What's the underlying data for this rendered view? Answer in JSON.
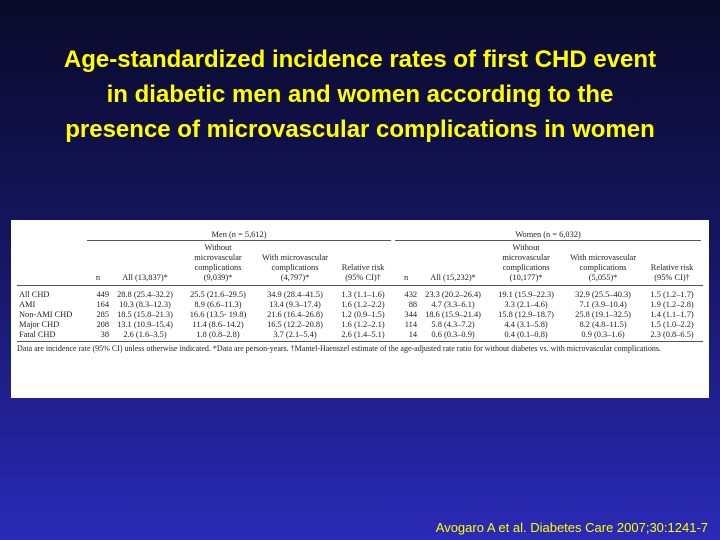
{
  "title": {
    "line1": "Age-standardized incidence rates of first CHD event",
    "line2": "in diabetic men and women according to the",
    "line3": "presence of microvascular complications in women"
  },
  "table": {
    "men_group": "Men (n = 5,612)",
    "women_group": "Women (n = 6,032)",
    "headers": {
      "n": "n",
      "all_men": "All (13,837)*",
      "without_men": "Without microvascular complications (9,039)*",
      "with_men": "With microvascular complications (4,797)*",
      "rr_men": "Relative risk (95% CI)†",
      "all_women": "All (15,232)*",
      "without_women": "Without microvascular complications (10,177)*",
      "with_women": "With microvascular complications (5,055)*",
      "rr_women": "Relative risk (95% CI)†"
    },
    "rows": [
      {
        "label": "All CHD",
        "n_men": "449",
        "all_men": "28.8 (25.4–32.2)",
        "without_men": "25.5 (21.6–29.5)",
        "with_men": "34.9 (28.4–41.5)",
        "rr_men": "1.3 (1.1–1.6)",
        "n_women": "432",
        "all_women": "23.3 (20.2–26.4)",
        "without_women": "19.1 (15.9–22.3)",
        "with_women": "32.9 (25.5–40.3)",
        "rr_women": "1.5 (1.2–1.7)"
      },
      {
        "label": "AMI",
        "n_men": "164",
        "all_men": "10.3 (8.3–12.3)",
        "without_men": "8.9 (6.6–11.3)",
        "with_men": "13.4 (9.3–17.4)",
        "rr_men": "1.6 (1.2–2.2)",
        "n_women": "88",
        "all_women": "4.7 (3.3–6.1)",
        "without_women": "3.3 (2.1–4.6)",
        "with_women": "7.1 (3.9–10.4)",
        "rr_women": "1.9 (1.2–2.8)"
      },
      {
        "label": "Non-AMI CHD",
        "n_men": "285",
        "all_men": "18.5 (15.8–21.3)",
        "without_men": "16.6 (13.5- 19.8)",
        "with_men": "21.6 (16.4–26.8)",
        "rr_men": "1.2 (0.9–1.5)",
        "n_women": "344",
        "all_women": "18.6 (15.9–21.4)",
        "without_women": "15.8 (12.9–18.7)",
        "with_women": "25.8 (19.1–32.5)",
        "rr_women": "1.4 (1.1–1.7)"
      },
      {
        "label": "Major CHD",
        "n_men": "208",
        "all_men": "13.1 (10.9–15.4)",
        "without_men": "11.4 (8.6–14.2)",
        "with_men": "16.5 (12.2–20.8)",
        "rr_men": "1.6 (1.2–2.1)",
        "n_women": "114",
        "all_women": "5.8 (4.3–7.2)",
        "without_women": "4.4 (3.1–5.8)",
        "with_women": "8.2 (4.8–11.5)",
        "rr_women": "1.5 (1.0–2.2)"
      },
      {
        "label": "Fatal CHD",
        "n_men": "38",
        "all_men": "2.6 (1.6–3.5)",
        "without_men": "1.8 (0.8–2.8)",
        "with_men": "3.7 (2.1–5.4)",
        "rr_men": "2.6 (1.4–5.1)",
        "n_women": "14",
        "all_women": "0.6 (0.3–0.9)",
        "without_women": "0.4 (0.1–0.8)",
        "with_women": "0.9 (0.3–1.6)",
        "rr_women": "2.3 (0.8–6.5)"
      }
    ],
    "footnote": "Data are incidence rate (95% CI) unless otherwise indicated. *Data are person-years. †Mantel-Haenszel estimate of the age-adjusted rate ratio for without diabetes vs. with microvascular complications."
  },
  "citation": "Avogaro A et al. Diabetes Care 2007;30:1241-7"
}
